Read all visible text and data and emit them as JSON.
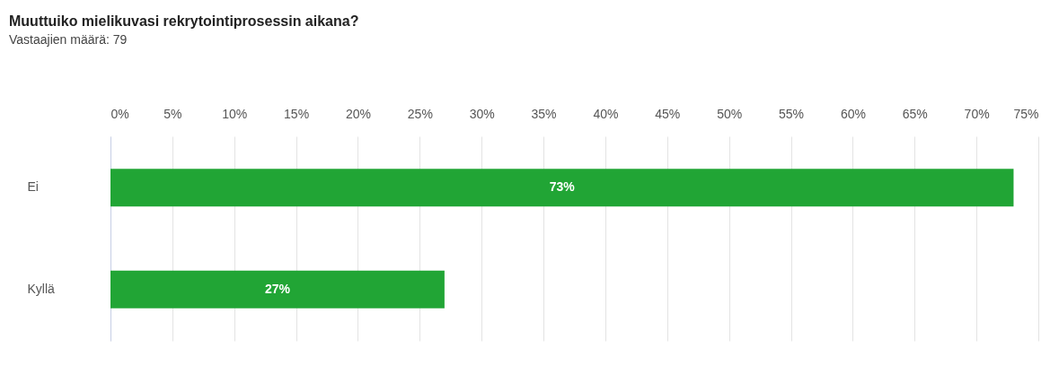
{
  "chart_data": {
    "type": "bar",
    "orientation": "horizontal",
    "title": "Muuttuiko mielikuvasi rekrytointiprosessin aikana?",
    "subtitle": "Vastaajien määrä: 79",
    "categories": [
      "Ei",
      "Kyllä"
    ],
    "values": [
      73,
      27
    ],
    "color": "#21a535",
    "value_labels": [
      "73%",
      "27%"
    ],
    "xlim": [
      0,
      75
    ],
    "xticks": [
      {
        "value": 0,
        "label": "0%"
      },
      {
        "value": 5,
        "label": "5%"
      },
      {
        "value": 10,
        "label": "10%"
      },
      {
        "value": 15,
        "label": "15%"
      },
      {
        "value": 20,
        "label": "20%"
      },
      {
        "value": 25,
        "label": "25%"
      },
      {
        "value": 30,
        "label": "30%"
      },
      {
        "value": 35,
        "label": "35%"
      },
      {
        "value": 40,
        "label": "40%"
      },
      {
        "value": 45,
        "label": "45%"
      },
      {
        "value": 50,
        "label": "50%"
      },
      {
        "value": 55,
        "label": "55%"
      },
      {
        "value": 60,
        "label": "60%"
      },
      {
        "value": 65,
        "label": "65%"
      },
      {
        "value": 70,
        "label": "70%"
      },
      {
        "value": 75,
        "label": "75%"
      }
    ],
    "grid": true
  }
}
